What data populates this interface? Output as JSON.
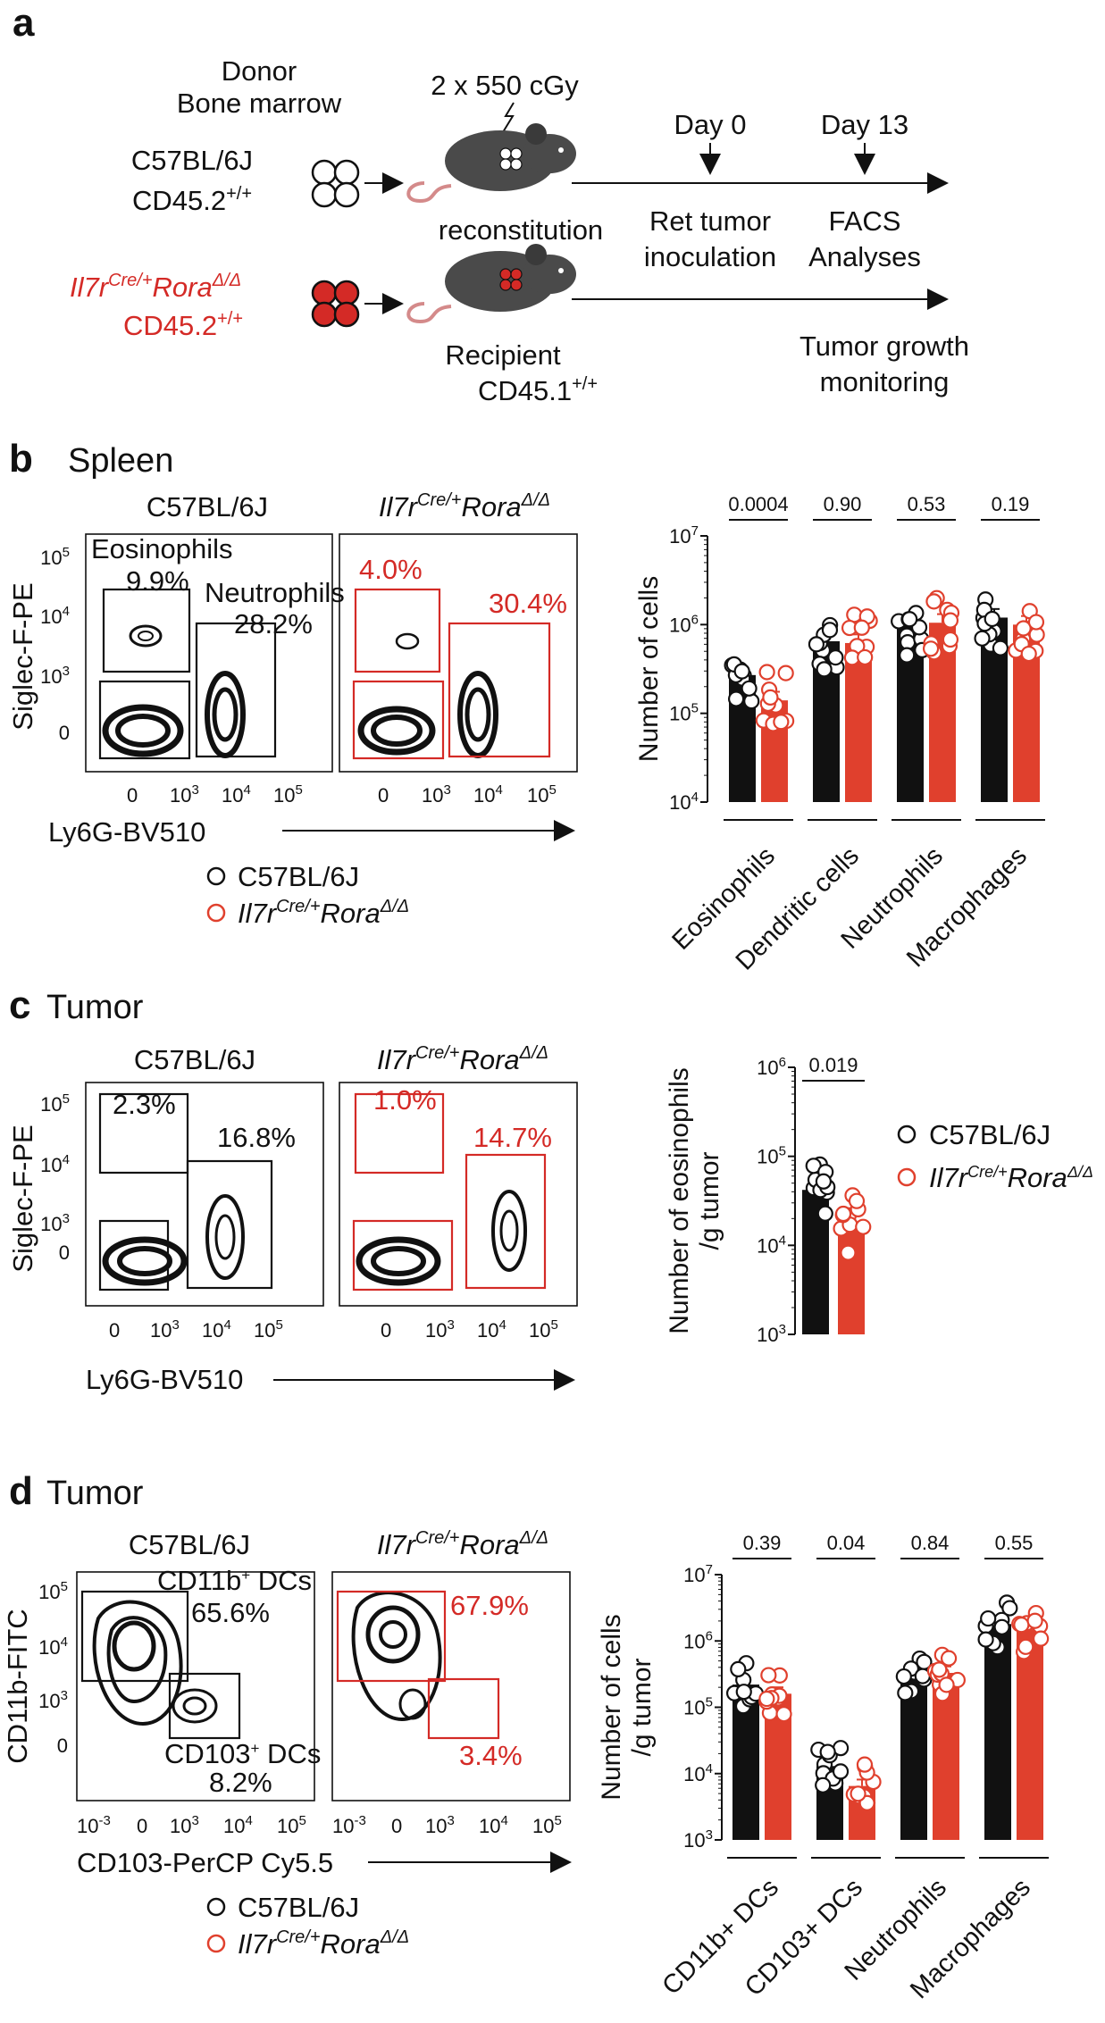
{
  "panel_a": {
    "letter": "a",
    "donor": [
      "Donor",
      "Bone marrow"
    ],
    "irradiation": "2 x 550 cGy",
    "wt_strain": "C57BL/6J",
    "wt_marker": "CD45.2",
    "wt_marker_sup": "+/+",
    "ko_il7r": "Il7r",
    "ko_il7r_sup": "Cre/+",
    "ko_rora": "Rora",
    "ko_rora_sup": "Δ/Δ",
    "ko_marker": "CD45.2",
    "ko_marker_sup": "+/+",
    "reconstitution": "reconstitution",
    "recipient": "Recipient",
    "recipient_marker": "CD45.1",
    "recipient_marker_sup": "+/+",
    "day0": "Day 0",
    "day13": "Day 13",
    "ret": [
      "Ret tumor",
      "inoculation"
    ],
    "facs": [
      "FACS",
      "Analyses"
    ],
    "growth": [
      "Tumor growth",
      "monitoring"
    ],
    "colors": {
      "wt": "#ffffff",
      "ko": "#d42a26"
    }
  },
  "panel_b": {
    "letter": "b",
    "title": "Spleen",
    "flow": {
      "wt_title": "C57BL/6J",
      "ylabel": "Siglec-F-PE",
      "xlabel": "Ly6G-BV510",
      "yticks": [
        "10^5",
        "10^4",
        "10^3",
        "0"
      ],
      "xticks": [
        "0",
        "10^3",
        "10^4",
        "10^5"
      ],
      "wt_gates": {
        "eos_name": "Eosinophils",
        "eos": "9.9%",
        "neu_name": "Neutrophils",
        "neu": "28.2%"
      },
      "ko_gates": {
        "eos": "4.0%",
        "neu": "30.4%"
      }
    },
    "legend": [
      "C57BL/6J",
      "Il7r Cre/+ Rora Δ/Δ"
    ]
  },
  "panel_c": {
    "letter": "c",
    "title": "Tumor",
    "flow": {
      "wt_title": "C57BL/6J",
      "ylabel": "Siglec-F-PE",
      "xlabel": "Ly6G-BV510",
      "wt_gates": {
        "eos": "2.3%",
        "neu": "16.8%"
      },
      "ko_gates": {
        "eos": "1.0%",
        "neu": "14.7%"
      }
    },
    "legend": [
      "C57BL/6J",
      "Il7r Cre/+ Rora Δ/Δ"
    ]
  },
  "panel_d": {
    "letter": "d",
    "title": "Tumor",
    "flow": {
      "wt_title": "C57BL/6J",
      "ylabel": "CD11b-FITC",
      "xlabel": "CD103-PerCP Cy5.5",
      "xticks": [
        "10^-3",
        "0",
        "10^3",
        "10^4",
        "10^5"
      ],
      "wt_gates": {
        "cd11b_name": "CD11b",
        "cd11b_sup": "+",
        "cd11b_tail": " DCs",
        "cd11b": "65.6%",
        "cd103_name": "CD103",
        "cd103_sup": "+",
        "cd103_tail": " DCs",
        "cd103": "8.2%"
      },
      "ko_gates": {
        "cd11b": "67.9%",
        "cd103": "3.4%"
      }
    },
    "legend": [
      "C57BL/6J",
      "Il7r Cre/+ Rora Δ/Δ"
    ]
  },
  "chart_data": [
    {
      "type": "bar",
      "panel": "b",
      "ylabel": "Number of cells",
      "yscale": "log",
      "ylim": [
        10000,
        10000000
      ],
      "yticks": [
        "10^4",
        "10^5",
        "10^6",
        "10^7"
      ],
      "categories": [
        "Eosinophils",
        "Dendritic cells",
        "Neutrophils",
        "Macrophages"
      ],
      "series": [
        {
          "name": "C57BL/6J",
          "color": "#111111",
          "values": [
            270000,
            650000,
            1000000,
            1200000
          ]
        },
        {
          "name": "Il7r Cre/+ Rora Δ/Δ",
          "color": "#e0402d",
          "values": [
            140000,
            620000,
            1050000,
            1000000
          ]
        }
      ],
      "pvalues": [
        "0.0004",
        "0.90",
        "0.53",
        "0.19"
      ]
    },
    {
      "type": "bar",
      "panel": "c",
      "ylabel": [
        "Number of eosinophils",
        "/g tumor"
      ],
      "yscale": "log",
      "ylim": [
        1000,
        1000000
      ],
      "yticks": [
        "10^3",
        "10^4",
        "10^5",
        "10^6"
      ],
      "categories": [
        ""
      ],
      "series": [
        {
          "name": "C57BL/6J",
          "color": "#111111",
          "values": [
            42000
          ]
        },
        {
          "name": "Il7r Cre/+ Rora Δ/Δ",
          "color": "#e0402d",
          "values": [
            17000
          ]
        }
      ],
      "pvalues": [
        "0.019"
      ],
      "legend": "right"
    },
    {
      "type": "bar",
      "panel": "d",
      "ylabel": [
        "Number of cells",
        "/g tumor"
      ],
      "yscale": "log",
      "ylim": [
        1000,
        10000000
      ],
      "yticks": [
        "10^3",
        "10^4",
        "10^5",
        "10^6",
        "10^7"
      ],
      "categories": [
        "CD11b+ DCs",
        "CD103+ DCs",
        "Neutrophils",
        "Macrophages"
      ],
      "series": [
        {
          "name": "C57BL/6J",
          "color": "#111111",
          "values": [
            220000,
            13000,
            320000,
            1800000
          ]
        },
        {
          "name": "Il7r Cre/+ Rora Δ/Δ",
          "color": "#e0402d",
          "values": [
            160000,
            6500,
            330000,
            1500000
          ]
        }
      ],
      "pvalues": [
        "0.39",
        "0.04",
        "0.84",
        "0.55"
      ]
    }
  ]
}
